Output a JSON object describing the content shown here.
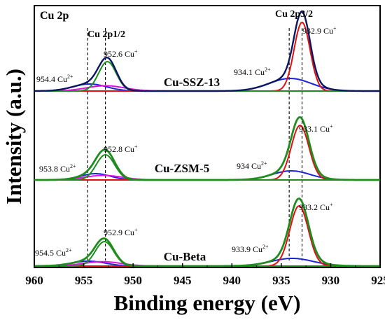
{
  "chart_data": {
    "type": "line",
    "title": "Cu 2p",
    "xlabel": "Binding energy (eV)",
    "ylabel": "Intensity (a.u.)",
    "x_reversed": true,
    "xlim": [
      960,
      925
    ],
    "xticks": [
      960,
      955,
      950,
      945,
      940,
      935,
      930,
      925
    ],
    "y_ticks_shown": false,
    "grid": false,
    "legend": "none",
    "region_labels": [
      "Cu 2p1/2",
      "Cu 2p3/2"
    ],
    "reference_lines_eV": [
      954.6,
      952.8,
      934.2,
      932.9
    ],
    "colors": {
      "envelope_ssz13": "#0b1560",
      "envelope_other": "#1e8c1e",
      "cu_plus": "#e01010",
      "cu_2plus": "#1c24d6",
      "satellite": "#e010e0",
      "baseline": "#2d2de0",
      "frame": "#000000"
    },
    "samples": [
      {
        "name": "Cu-SSZ-13",
        "annotations": [
          {
            "value": "954.4",
            "ion": "Cu",
            "charge": "2+"
          },
          {
            "value": "952.6",
            "ion": "Cu",
            "charge": "+"
          },
          {
            "value": "934.1",
            "ion": "Cu",
            "charge": "2+"
          },
          {
            "value": "932.9",
            "ion": "Cu",
            "charge": "+"
          }
        ],
        "peaks": [
          {
            "component": "Cu+",
            "center": 932.9,
            "height": 98,
            "fwhm": 1.9
          },
          {
            "component": "Cu2+",
            "center": 934.1,
            "height": 18,
            "fwhm": 5.0
          },
          {
            "component": "Cu+",
            "center": 952.6,
            "height": 42,
            "fwhm": 2.1
          },
          {
            "component": "Cu2+",
            "center": 954.4,
            "height": 10,
            "fwhm": 4.0
          }
        ]
      },
      {
        "name": "Cu-ZSM-5",
        "annotations": [
          {
            "value": "953.8",
            "ion": "Cu",
            "charge": "2+"
          },
          {
            "value": "952.8",
            "ion": "Cu",
            "charge": "+"
          },
          {
            "value": "934",
            "ion": "Cu",
            "charge": "2+"
          },
          {
            "value": "933.1",
            "ion": "Cu",
            "charge": "+"
          }
        ],
        "peaks": [
          {
            "component": "Cu+",
            "center": 933.1,
            "height": 78,
            "fwhm": 2.1
          },
          {
            "component": "Cu2+",
            "center": 934.0,
            "height": 13,
            "fwhm": 4.5
          },
          {
            "component": "Cu+",
            "center": 952.8,
            "height": 36,
            "fwhm": 2.2
          },
          {
            "component": "Cu2+",
            "center": 953.8,
            "height": 9,
            "fwhm": 3.5
          }
        ]
      },
      {
        "name": "Cu-Beta",
        "annotations": [
          {
            "value": "954.5",
            "ion": "Cu",
            "charge": "2+"
          },
          {
            "value": "952.9",
            "ion": "Cu",
            "charge": "+"
          },
          {
            "value": "933.9",
            "ion": "Cu",
            "charge": "2+"
          },
          {
            "value": "933.2",
            "ion": "Cu",
            "charge": "+"
          }
        ],
        "peaks": [
          {
            "component": "Cu+",
            "center": 933.2,
            "height": 86,
            "fwhm": 2.2
          },
          {
            "component": "Cu2+",
            "center": 933.9,
            "height": 11,
            "fwhm": 5.0
          },
          {
            "component": "Cu+",
            "center": 952.9,
            "height": 35,
            "fwhm": 2.2
          },
          {
            "component": "Cu2+",
            "center": 954.5,
            "height": 7,
            "fwhm": 4.0
          }
        ]
      }
    ]
  }
}
